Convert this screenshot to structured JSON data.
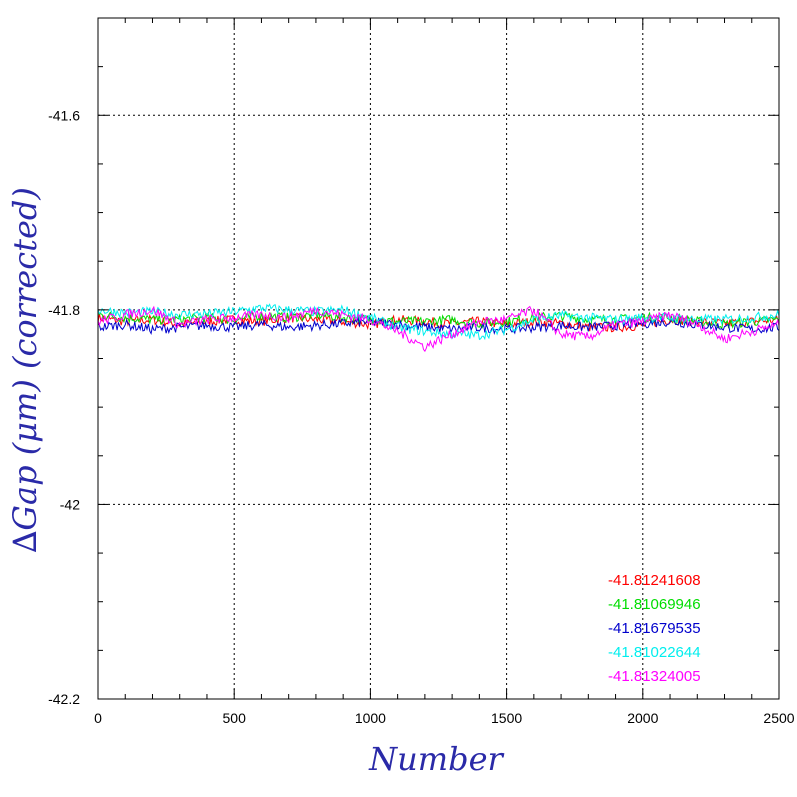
{
  "chart_data": {
    "type": "line",
    "xlabel": "Number",
    "ylabel": "∆Gap (μm) (corrected)",
    "xlim": [
      0,
      2500
    ],
    "ylim": [
      -42.2,
      -41.5
    ],
    "xticks": [
      0,
      500,
      1000,
      1500,
      2000,
      2500
    ],
    "xtick_labels": [
      "0",
      "500",
      "1000",
      "1500",
      "2000",
      "2500"
    ],
    "yticks": [
      -42.2,
      -42,
      -41.8,
      -41.6
    ],
    "ytick_labels": [
      "-42.2",
      "-42",
      "-41.8",
      "-41.6"
    ],
    "grid": true,
    "legend_position": "lower-right",
    "series": [
      {
        "name": "-41.81241608",
        "color": "#ff0000",
        "x": [
          0,
          100,
          200,
          300,
          400,
          500,
          600,
          700,
          800,
          900,
          1000,
          1100,
          1200,
          1300,
          1400,
          1500,
          1600,
          1700,
          1800,
          1900,
          2000,
          2100,
          2200,
          2300,
          2400,
          2500
        ],
        "y": [
          -41.808,
          -41.812,
          -41.81,
          -41.815,
          -41.812,
          -41.81,
          -41.812,
          -41.808,
          -41.81,
          -41.812,
          -41.815,
          -41.81,
          -41.812,
          -41.814,
          -41.812,
          -41.815,
          -41.812,
          -41.814,
          -41.818,
          -41.818,
          -41.816,
          -41.81,
          -41.812,
          -41.814,
          -41.812,
          -41.81
        ]
      },
      {
        "name": "-41.81069946",
        "color": "#00dd00",
        "x": [
          0,
          100,
          200,
          300,
          400,
          500,
          600,
          700,
          800,
          900,
          1000,
          1100,
          1200,
          1300,
          1400,
          1500,
          1600,
          1700,
          1800,
          1900,
          2000,
          2100,
          2200,
          2300,
          2400,
          2500
        ],
        "y": [
          -41.805,
          -41.808,
          -41.81,
          -41.81,
          -41.808,
          -41.81,
          -41.806,
          -41.808,
          -41.805,
          -41.808,
          -41.81,
          -41.812,
          -41.812,
          -41.81,
          -41.814,
          -41.812,
          -41.808,
          -41.806,
          -41.81,
          -41.81,
          -41.808,
          -41.808,
          -41.812,
          -41.815,
          -41.812,
          -41.81
        ]
      },
      {
        "name": "-41.81679535",
        "color": "#0000cc",
        "x": [
          0,
          100,
          200,
          300,
          400,
          500,
          600,
          700,
          800,
          900,
          1000,
          1100,
          1200,
          1300,
          1400,
          1500,
          1600,
          1700,
          1800,
          1900,
          2000,
          2100,
          2200,
          2300,
          2400,
          2500
        ],
        "y": [
          -41.818,
          -41.815,
          -41.82,
          -41.818,
          -41.816,
          -41.818,
          -41.815,
          -41.818,
          -41.816,
          -41.814,
          -41.812,
          -41.815,
          -41.818,
          -41.82,
          -41.818,
          -41.82,
          -41.818,
          -41.816,
          -41.818,
          -41.816,
          -41.814,
          -41.812,
          -41.815,
          -41.818,
          -41.82,
          -41.818
        ]
      },
      {
        "name": "-41.81022644",
        "color": "#00eeee",
        "x": [
          0,
          100,
          200,
          300,
          400,
          500,
          600,
          700,
          800,
          900,
          1000,
          1100,
          1200,
          1300,
          1400,
          1500,
          1600,
          1700,
          1800,
          1900,
          2000,
          2100,
          2200,
          2300,
          2400,
          2500
        ],
        "y": [
          -41.8,
          -41.803,
          -41.802,
          -41.805,
          -41.804,
          -41.802,
          -41.798,
          -41.8,
          -41.802,
          -41.8,
          -41.808,
          -41.818,
          -41.822,
          -41.825,
          -41.826,
          -41.82,
          -41.81,
          -41.806,
          -41.808,
          -41.81,
          -41.808,
          -41.808,
          -41.81,
          -41.81,
          -41.808,
          -41.805
        ]
      },
      {
        "name": "-41.81324005",
        "color": "#ff00ff",
        "x": [
          0,
          100,
          200,
          300,
          400,
          500,
          600,
          700,
          800,
          900,
          1000,
          1100,
          1200,
          1300,
          1400,
          1500,
          1600,
          1700,
          1800,
          1900,
          2000,
          2100,
          2200,
          2300,
          2400,
          2500
        ],
        "y": [
          -41.812,
          -41.805,
          -41.8,
          -41.815,
          -41.81,
          -41.808,
          -41.805,
          -41.808,
          -41.8,
          -41.805,
          -41.81,
          -41.822,
          -41.838,
          -41.825,
          -41.812,
          -41.81,
          -41.8,
          -41.825,
          -41.828,
          -41.815,
          -41.812,
          -41.805,
          -41.815,
          -41.83,
          -41.822,
          -41.815
        ]
      }
    ]
  }
}
